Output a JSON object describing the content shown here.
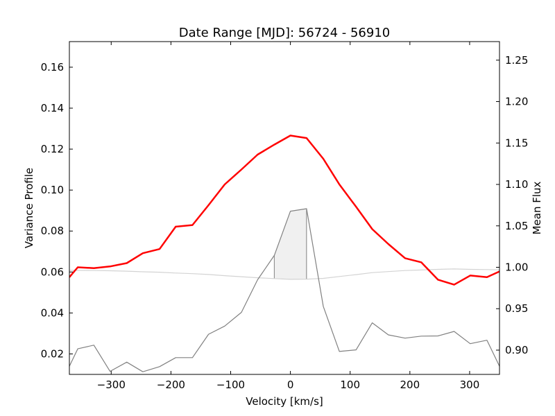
{
  "chart_data": {
    "type": "line",
    "title": "Date Range [MJD]: 56724 - 56910",
    "xlabel": "Velocity [km/s]",
    "ylabel": "Variance Profile",
    "y2label": "Mean Flux",
    "xlim": [
      -370,
      350
    ],
    "ylim": [
      0.01,
      0.1725
    ],
    "y2lim": [
      0.8707,
      1.2724
    ],
    "xticks": [
      -300,
      -200,
      -100,
      0,
      100,
      200,
      300
    ],
    "xtick_labels": [
      "−300",
      "−200",
      "−100",
      "0",
      "100",
      "200",
      "300"
    ],
    "yticks": [
      0.02,
      0.04,
      0.06,
      0.08,
      0.1,
      0.12,
      0.14,
      0.16
    ],
    "ytick_labels": [
      "0.02",
      "0.04",
      "0.06",
      "0.08",
      "0.10",
      "0.12",
      "0.14",
      "0.16"
    ],
    "y2ticks": [
      0.9,
      0.95,
      1.0,
      1.05,
      1.1,
      1.15,
      1.2,
      1.25
    ],
    "y2tick_labels": [
      "0.90",
      "0.95",
      "1.00",
      "1.05",
      "1.10",
      "1.15",
      "1.20",
      "1.25"
    ],
    "grid": false,
    "colors": {
      "mean_flux": "#ff0000",
      "variance": "#808080",
      "baseline": "#d3d3d3",
      "shade_fill": "#f0f0f0",
      "shade_edge": "#808080"
    },
    "series": [
      {
        "key": "variance",
        "axis": "left",
        "x": [
          -370,
          -356,
          -329,
          -302,
          -274,
          -247,
          -219,
          -192,
          -164,
          -137,
          -110,
          -82,
          -55,
          -27,
          0,
          27,
          55,
          82,
          110,
          137,
          164,
          192,
          219,
          247,
          274,
          301,
          329,
          350
        ],
        "values": [
          0.014,
          0.0225,
          0.0243,
          0.0115,
          0.016,
          0.0113,
          0.0138,
          0.0182,
          0.0182,
          0.0296,
          0.0336,
          0.0403,
          0.0562,
          0.0681,
          0.0897,
          0.0909,
          0.0432,
          0.0212,
          0.022,
          0.0352,
          0.0293,
          0.0277,
          0.0287,
          0.0288,
          0.031,
          0.025,
          0.0267,
          0.014
        ]
      },
      {
        "key": "baseline",
        "axis": "left",
        "x": [
          -370,
          -356,
          -329,
          -302,
          -274,
          -247,
          -219,
          -192,
          -164,
          -137,
          -110,
          -82,
          -55,
          -27,
          0,
          27,
          55,
          82,
          110,
          137,
          164,
          192,
          219,
          247,
          274,
          301,
          329,
          350
        ],
        "values": [
          0.0608,
          0.0608,
          0.0607,
          0.0606,
          0.0604,
          0.0601,
          0.0599,
          0.0595,
          0.0592,
          0.0588,
          0.0582,
          0.0577,
          0.0572,
          0.0568,
          0.0564,
          0.0565,
          0.0569,
          0.0578,
          0.0587,
          0.0597,
          0.0602,
          0.0607,
          0.061,
          0.0613,
          0.0615,
          0.0613,
          0.0612,
          0.0611
        ]
      },
      {
        "key": "mean_flux",
        "axis": "right",
        "x": [
          -370,
          -356,
          -329,
          -302,
          -274,
          -247,
          -219,
          -192,
          -164,
          -137,
          -110,
          -82,
          -55,
          -27,
          0,
          27,
          55,
          82,
          110,
          137,
          164,
          192,
          219,
          247,
          274,
          301,
          329,
          350
        ],
        "values": [
          0.988,
          1.0,
          0.999,
          1.001,
          1.005,
          1.017,
          1.022,
          1.049,
          1.051,
          1.075,
          1.1,
          1.118,
          1.136,
          1.148,
          1.159,
          1.156,
          1.131,
          1.1,
          1.073,
          1.046,
          1.028,
          1.011,
          1.006,
          0.985,
          0.979,
          0.99,
          0.988,
          0.995
        ]
      }
    ],
    "shaded_region": {
      "x": [
        -27,
        0,
        27
      ],
      "upper": [
        0.0681,
        0.0897,
        0.0909
      ],
      "lower": [
        0.0568,
        0.0564,
        0.0565
      ]
    }
  }
}
